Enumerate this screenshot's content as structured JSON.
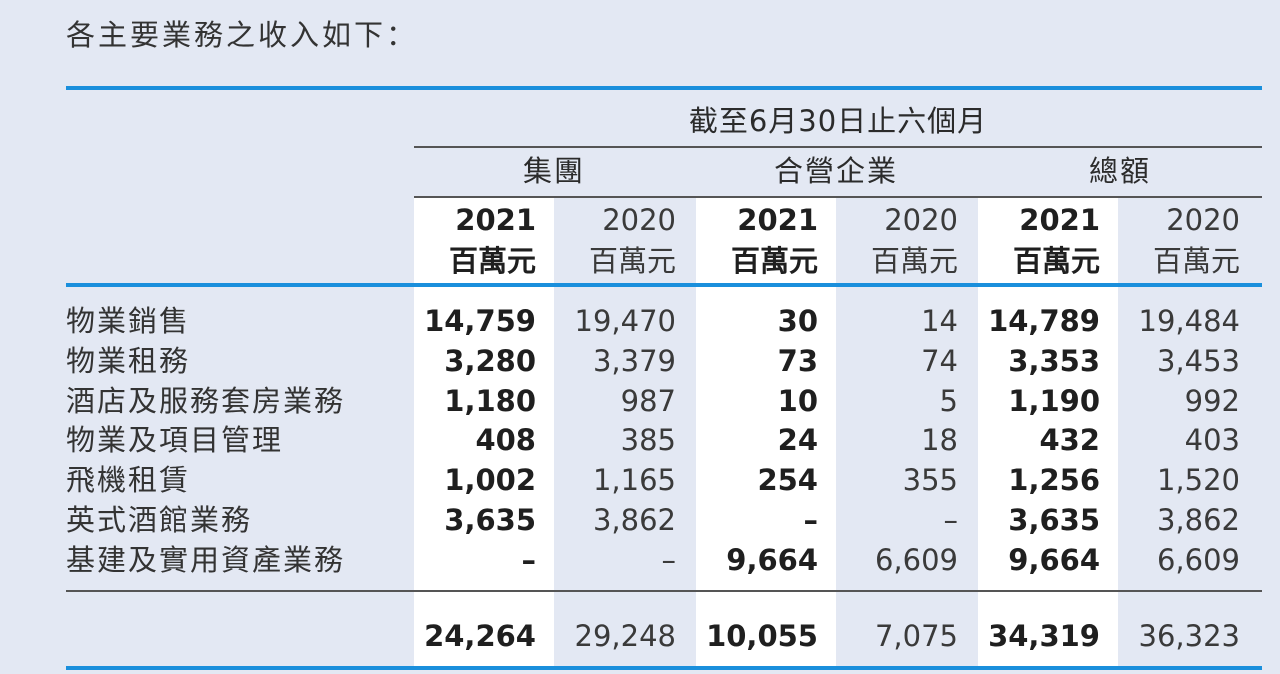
{
  "intro": "各主要業務之收入如下：",
  "period_header": "截至6月30日止六個月",
  "groups": [
    "集團",
    "合營企業",
    "總額"
  ],
  "year_headers": [
    {
      "year": "2021",
      "unit": "百萬元"
    },
    {
      "year": "2020",
      "unit": "百萬元"
    },
    {
      "year": "2021",
      "unit": "百萬元"
    },
    {
      "year": "2020",
      "unit": "百萬元"
    },
    {
      "year": "2021",
      "unit": "百萬元"
    },
    {
      "year": "2020",
      "unit": "百萬元"
    }
  ],
  "rows": [
    {
      "label": "物業銷售",
      "values": [
        "14,759",
        "19,470",
        "30",
        "14",
        "14,789",
        "19,484"
      ]
    },
    {
      "label": "物業租務",
      "values": [
        "3,280",
        "3,379",
        "73",
        "74",
        "3,353",
        "3,453"
      ]
    },
    {
      "label": "酒店及服務套房業務",
      "values": [
        "1,180",
        "987",
        "10",
        "5",
        "1,190",
        "992"
      ]
    },
    {
      "label": "物業及項目管理",
      "values": [
        "408",
        "385",
        "24",
        "18",
        "432",
        "403"
      ]
    },
    {
      "label": "飛機租賃",
      "values": [
        "1,002",
        "1,165",
        "254",
        "355",
        "1,256",
        "1,520"
      ]
    },
    {
      "label": "英式酒館業務",
      "values": [
        "3,635",
        "3,862",
        "–",
        "–",
        "3,635",
        "3,862"
      ]
    },
    {
      "label": "基建及實用資產業務",
      "values": [
        "–",
        "–",
        "9,664",
        "6,609",
        "9,664",
        "6,609"
      ]
    }
  ],
  "totals": [
    "24,264",
    "29,248",
    "10,055",
    "7,075",
    "34,319",
    "36,323"
  ]
}
